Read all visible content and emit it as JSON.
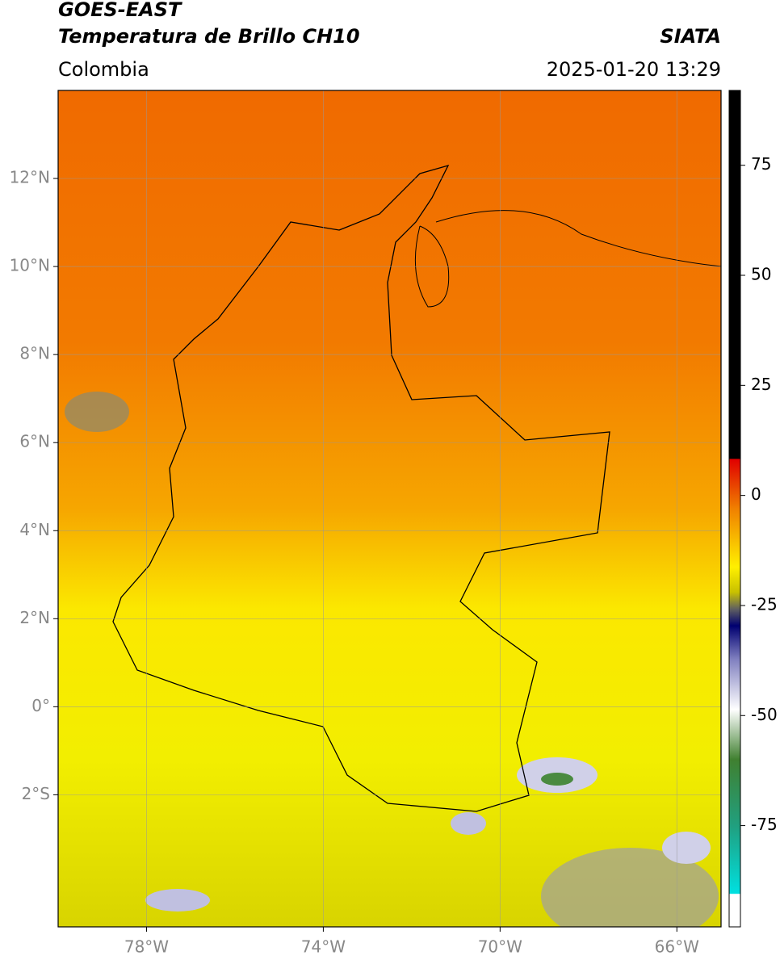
{
  "header": {
    "title": "GOES-EAST",
    "product": "Temperatura de Brillo CH10",
    "region": "Colombia",
    "source": "SIATA",
    "datetime": "2025-01-20 13:29"
  },
  "map": {
    "xlim": [
      -80,
      -65
    ],
    "ylim": [
      -5,
      14
    ],
    "xticks": [
      {
        "value": -78,
        "label": "78°W"
      },
      {
        "value": -74,
        "label": "74°W"
      },
      {
        "value": -70,
        "label": "70°W"
      },
      {
        "value": -66,
        "label": "66°W"
      }
    ],
    "yticks": [
      {
        "value": 12,
        "label": "12°N"
      },
      {
        "value": 10,
        "label": "10°N"
      },
      {
        "value": 8,
        "label": "8°N"
      },
      {
        "value": 6,
        "label": "6°N"
      },
      {
        "value": 4,
        "label": "4°N"
      },
      {
        "value": 2,
        "label": "2°N"
      },
      {
        "value": 0,
        "label": "0°"
      },
      {
        "value": -2,
        "label": "2°S"
      }
    ],
    "grid": true,
    "colorbar": {
      "lim": [
        -98,
        92
      ],
      "ticks": [
        75,
        50,
        25,
        0,
        -25,
        -50,
        -75
      ]
    }
  }
}
